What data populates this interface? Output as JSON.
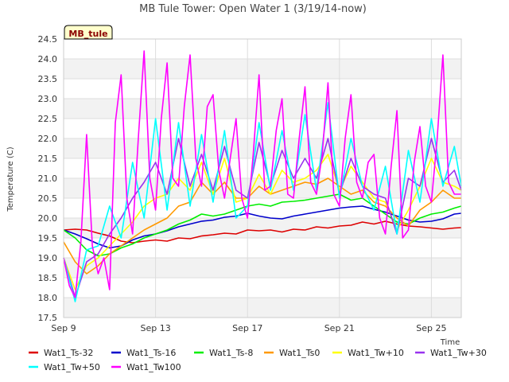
{
  "chart_data": {
    "type": "line",
    "title": "MB Tule Tower: Open Water 1 (3/19/14-now)",
    "xlabel": "Time",
    "ylabel": "Temperature (C)",
    "badge": "MB_tule",
    "xlim": [
      9,
      26.3
    ],
    "ylim": [
      17.5,
      24.5
    ],
    "x_ticks": [
      {
        "value": 9,
        "label": "Sep 9"
      },
      {
        "value": 13,
        "label": "Sep 13"
      },
      {
        "value": 17,
        "label": "Sep 17"
      },
      {
        "value": 21,
        "label": "Sep 21"
      },
      {
        "value": 25,
        "label": "Sep 25"
      }
    ],
    "y_ticks": [
      {
        "value": 17.5,
        "label": "17.5"
      },
      {
        "value": 18.0,
        "label": "18.0"
      },
      {
        "value": 18.5,
        "label": "18.5"
      },
      {
        "value": 19.0,
        "label": "19.0"
      },
      {
        "value": 19.5,
        "label": "19.5"
      },
      {
        "value": 20.0,
        "label": "20.0"
      },
      {
        "value": 20.5,
        "label": "20.5"
      },
      {
        "value": 21.0,
        "label": "21.0"
      },
      {
        "value": 21.5,
        "label": "21.5"
      },
      {
        "value": 22.0,
        "label": "22.0"
      },
      {
        "value": 22.5,
        "label": "22.5"
      },
      {
        "value": 23.0,
        "label": "23.0"
      },
      {
        "value": 23.5,
        "label": "23.5"
      },
      {
        "value": 24.0,
        "label": "24.0"
      },
      {
        "value": 24.5,
        "label": "24.5"
      }
    ],
    "series": [
      {
        "name": "Wat1_Ts-32",
        "color": "#dd0000",
        "x": [
          9.0,
          9.5,
          10.0,
          10.5,
          11.0,
          11.5,
          12.0,
          12.5,
          13.0,
          13.5,
          14.0,
          14.5,
          15.0,
          15.5,
          16.0,
          16.5,
          17.0,
          17.5,
          18.0,
          18.5,
          19.0,
          19.5,
          20.0,
          20.5,
          21.0,
          21.5,
          22.0,
          22.5,
          23.0,
          23.5,
          24.0,
          24.5,
          25.0,
          25.5,
          26.0,
          26.3
        ],
        "y": [
          19.7,
          19.72,
          19.7,
          19.62,
          19.55,
          19.42,
          19.38,
          19.42,
          19.45,
          19.42,
          19.5,
          19.48,
          19.55,
          19.58,
          19.62,
          19.6,
          19.7,
          19.68,
          19.7,
          19.65,
          19.72,
          19.7,
          19.78,
          19.75,
          19.8,
          19.82,
          19.9,
          19.85,
          19.92,
          19.85,
          19.8,
          19.78,
          19.75,
          19.72,
          19.75,
          19.76
        ]
      },
      {
        "name": "Wat1_Ts-16",
        "color": "#0000cc",
        "x": [
          9.0,
          9.5,
          10.0,
          10.5,
          11.0,
          11.5,
          12.0,
          12.5,
          13.0,
          13.5,
          14.0,
          14.5,
          15.0,
          15.5,
          16.0,
          16.5,
          17.0,
          17.5,
          18.0,
          18.5,
          19.0,
          19.5,
          20.0,
          20.5,
          21.0,
          21.5,
          22.0,
          22.5,
          23.0,
          23.5,
          24.0,
          24.5,
          25.0,
          25.5,
          26.0,
          26.3
        ],
        "y": [
          19.7,
          19.6,
          19.48,
          19.35,
          19.25,
          19.3,
          19.45,
          19.55,
          19.6,
          19.68,
          19.78,
          19.85,
          19.92,
          19.95,
          20.02,
          20.05,
          20.12,
          20.05,
          20.0,
          19.98,
          20.05,
          20.1,
          20.15,
          20.2,
          20.25,
          20.28,
          20.3,
          20.22,
          20.15,
          20.05,
          19.95,
          19.9,
          19.92,
          19.98,
          20.1,
          20.12
        ]
      },
      {
        "name": "Wat1_Ts-8",
        "color": "#00ee00",
        "x": [
          9.0,
          9.5,
          10.0,
          10.5,
          11.0,
          11.5,
          12.0,
          12.5,
          13.0,
          13.5,
          14.0,
          14.5,
          15.0,
          15.5,
          16.0,
          16.5,
          17.0,
          17.5,
          18.0,
          18.5,
          19.0,
          19.5,
          20.0,
          20.5,
          21.0,
          21.5,
          22.0,
          22.5,
          23.0,
          23.5,
          24.0,
          24.5,
          25.0,
          25.5,
          26.0,
          26.3
        ],
        "y": [
          19.7,
          19.5,
          19.2,
          19.05,
          19.1,
          19.25,
          19.35,
          19.5,
          19.6,
          19.7,
          19.85,
          19.95,
          20.1,
          20.05,
          20.1,
          20.2,
          20.3,
          20.35,
          20.3,
          20.4,
          20.42,
          20.45,
          20.5,
          20.55,
          20.6,
          20.45,
          20.5,
          20.3,
          20.1,
          19.9,
          19.85,
          20.0,
          20.1,
          20.15,
          20.25,
          20.3
        ]
      },
      {
        "name": "Wat1_Ts0",
        "color": "#ff9900",
        "x": [
          9.0,
          9.5,
          10.0,
          10.5,
          11.0,
          11.5,
          12.0,
          12.5,
          13.0,
          13.5,
          14.0,
          14.5,
          15.0,
          15.5,
          16.0,
          16.5,
          17.0,
          17.5,
          18.0,
          18.5,
          19.0,
          19.5,
          20.0,
          20.5,
          21.0,
          21.5,
          22.0,
          22.5,
          23.0,
          23.5,
          24.0,
          24.5,
          25.0,
          25.5,
          26.0,
          26.3
        ],
        "y": [
          19.4,
          18.9,
          18.6,
          18.8,
          19.1,
          19.3,
          19.5,
          19.7,
          19.85,
          20.0,
          20.3,
          20.4,
          20.9,
          20.6,
          20.9,
          20.5,
          20.5,
          20.8,
          20.6,
          20.7,
          20.8,
          20.9,
          20.85,
          21.0,
          20.8,
          20.6,
          20.7,
          20.4,
          20.3,
          20.0,
          19.8,
          20.2,
          20.4,
          20.7,
          20.5,
          20.5
        ]
      },
      {
        "name": "Wat1_Tw+10",
        "color": "#ffff00",
        "x": [
          9.0,
          9.5,
          10.0,
          10.5,
          11.0,
          11.5,
          12.0,
          12.5,
          13.0,
          13.5,
          14.0,
          14.5,
          15.0,
          15.5,
          16.0,
          16.5,
          17.0,
          17.5,
          18.0,
          18.5,
          19.0,
          19.5,
          20.0,
          20.5,
          21.0,
          21.5,
          22.0,
          22.5,
          23.0,
          23.5,
          24.0,
          24.5,
          25.0,
          25.5,
          26.0,
          26.3
        ],
        "y": [
          19.0,
          18.2,
          18.8,
          19.0,
          19.3,
          19.6,
          19.9,
          20.3,
          20.5,
          20.6,
          21.0,
          20.7,
          21.4,
          20.6,
          21.5,
          20.4,
          20.5,
          21.1,
          20.6,
          21.2,
          20.9,
          21.0,
          21.2,
          21.6,
          20.7,
          21.3,
          20.9,
          20.5,
          20.4,
          19.7,
          20.2,
          20.8,
          21.5,
          20.9,
          20.8,
          20.7
        ]
      },
      {
        "name": "Wat1_Tw+30",
        "color": "#9933ee",
        "x": [
          9.0,
          9.5,
          10.0,
          10.5,
          11.0,
          11.5,
          12.0,
          12.5,
          13.0,
          13.5,
          14.0,
          14.5,
          15.0,
          15.5,
          16.0,
          16.5,
          17.0,
          17.5,
          18.0,
          18.5,
          19.0,
          19.5,
          20.0,
          20.5,
          21.0,
          21.5,
          22.0,
          22.5,
          23.0,
          23.5,
          24.0,
          24.5,
          25.0,
          25.5,
          26.0,
          26.3
        ],
        "y": [
          19.0,
          18.0,
          18.9,
          19.1,
          19.6,
          20.0,
          20.5,
          20.9,
          21.4,
          20.6,
          22.0,
          20.8,
          21.6,
          20.7,
          21.8,
          20.7,
          20.5,
          21.9,
          20.8,
          21.7,
          21.0,
          21.5,
          21.0,
          22.0,
          20.6,
          21.5,
          20.8,
          20.6,
          20.5,
          19.6,
          21.0,
          20.8,
          22.0,
          20.9,
          21.2,
          20.7
        ]
      },
      {
        "name": "Wat1_Tw+50",
        "color": "#00ffff",
        "x": [
          9.0,
          9.5,
          10.0,
          10.5,
          11.0,
          11.5,
          12.0,
          12.5,
          13.0,
          13.5,
          14.0,
          14.5,
          15.0,
          15.5,
          16.0,
          16.5,
          17.0,
          17.5,
          18.0,
          18.5,
          19.0,
          19.5,
          20.0,
          20.5,
          21.0,
          21.5,
          22.0,
          22.5,
          23.0,
          23.5,
          24.0,
          24.5,
          25.0,
          25.5,
          26.0,
          26.3
        ],
        "y": [
          19.0,
          17.9,
          19.2,
          19.3,
          20.3,
          19.5,
          21.4,
          20.0,
          22.5,
          20.2,
          22.4,
          20.3,
          22.1,
          20.4,
          22.2,
          20.0,
          20.3,
          22.4,
          20.7,
          22.2,
          20.7,
          22.6,
          20.7,
          22.9,
          20.5,
          22.0,
          20.8,
          20.2,
          21.3,
          19.6,
          21.7,
          20.4,
          22.5,
          20.8,
          21.8,
          20.8
        ]
      },
      {
        "name": "Wat1_Tw100",
        "color": "#ff00ff",
        "x": [
          9.0,
          9.25,
          9.5,
          9.75,
          10.0,
          10.25,
          10.5,
          10.75,
          11.0,
          11.25,
          11.5,
          11.75,
          12.0,
          12.25,
          12.5,
          12.75,
          13.0,
          13.25,
          13.5,
          13.75,
          14.0,
          14.25,
          14.5,
          14.75,
          15.0,
          15.25,
          15.5,
          15.75,
          16.0,
          16.25,
          16.5,
          16.75,
          17.0,
          17.25,
          17.5,
          17.75,
          18.0,
          18.25,
          18.5,
          18.75,
          19.0,
          19.25,
          19.5,
          19.75,
          20.0,
          20.25,
          20.5,
          20.75,
          21.0,
          21.25,
          21.5,
          21.75,
          22.0,
          22.25,
          22.5,
          22.75,
          23.0,
          23.25,
          23.5,
          23.75,
          24.0,
          24.25,
          24.5,
          24.75,
          25.0,
          25.25,
          25.5,
          25.75,
          26.0,
          26.3
        ],
        "y": [
          19.0,
          18.3,
          18.0,
          19.4,
          22.1,
          19.3,
          18.6,
          19.0,
          18.2,
          22.4,
          23.6,
          20.5,
          19.6,
          22.0,
          24.2,
          21.0,
          20.2,
          22.5,
          23.9,
          21.0,
          20.8,
          22.8,
          24.1,
          21.5,
          20.8,
          22.8,
          23.1,
          21.2,
          20.5,
          21.5,
          22.5,
          20.5,
          20.0,
          21.6,
          23.6,
          20.7,
          20.8,
          22.2,
          23.0,
          20.6,
          20.5,
          22.0,
          23.3,
          20.9,
          20.6,
          21.6,
          23.4,
          20.6,
          20.3,
          22.0,
          23.1,
          20.9,
          20.5,
          21.4,
          21.6,
          20.0,
          19.6,
          21.3,
          22.7,
          19.5,
          19.7,
          21.4,
          22.3,
          20.8,
          20.4,
          22.0,
          24.1,
          20.9,
          20.6,
          20.6
        ]
      }
    ]
  }
}
